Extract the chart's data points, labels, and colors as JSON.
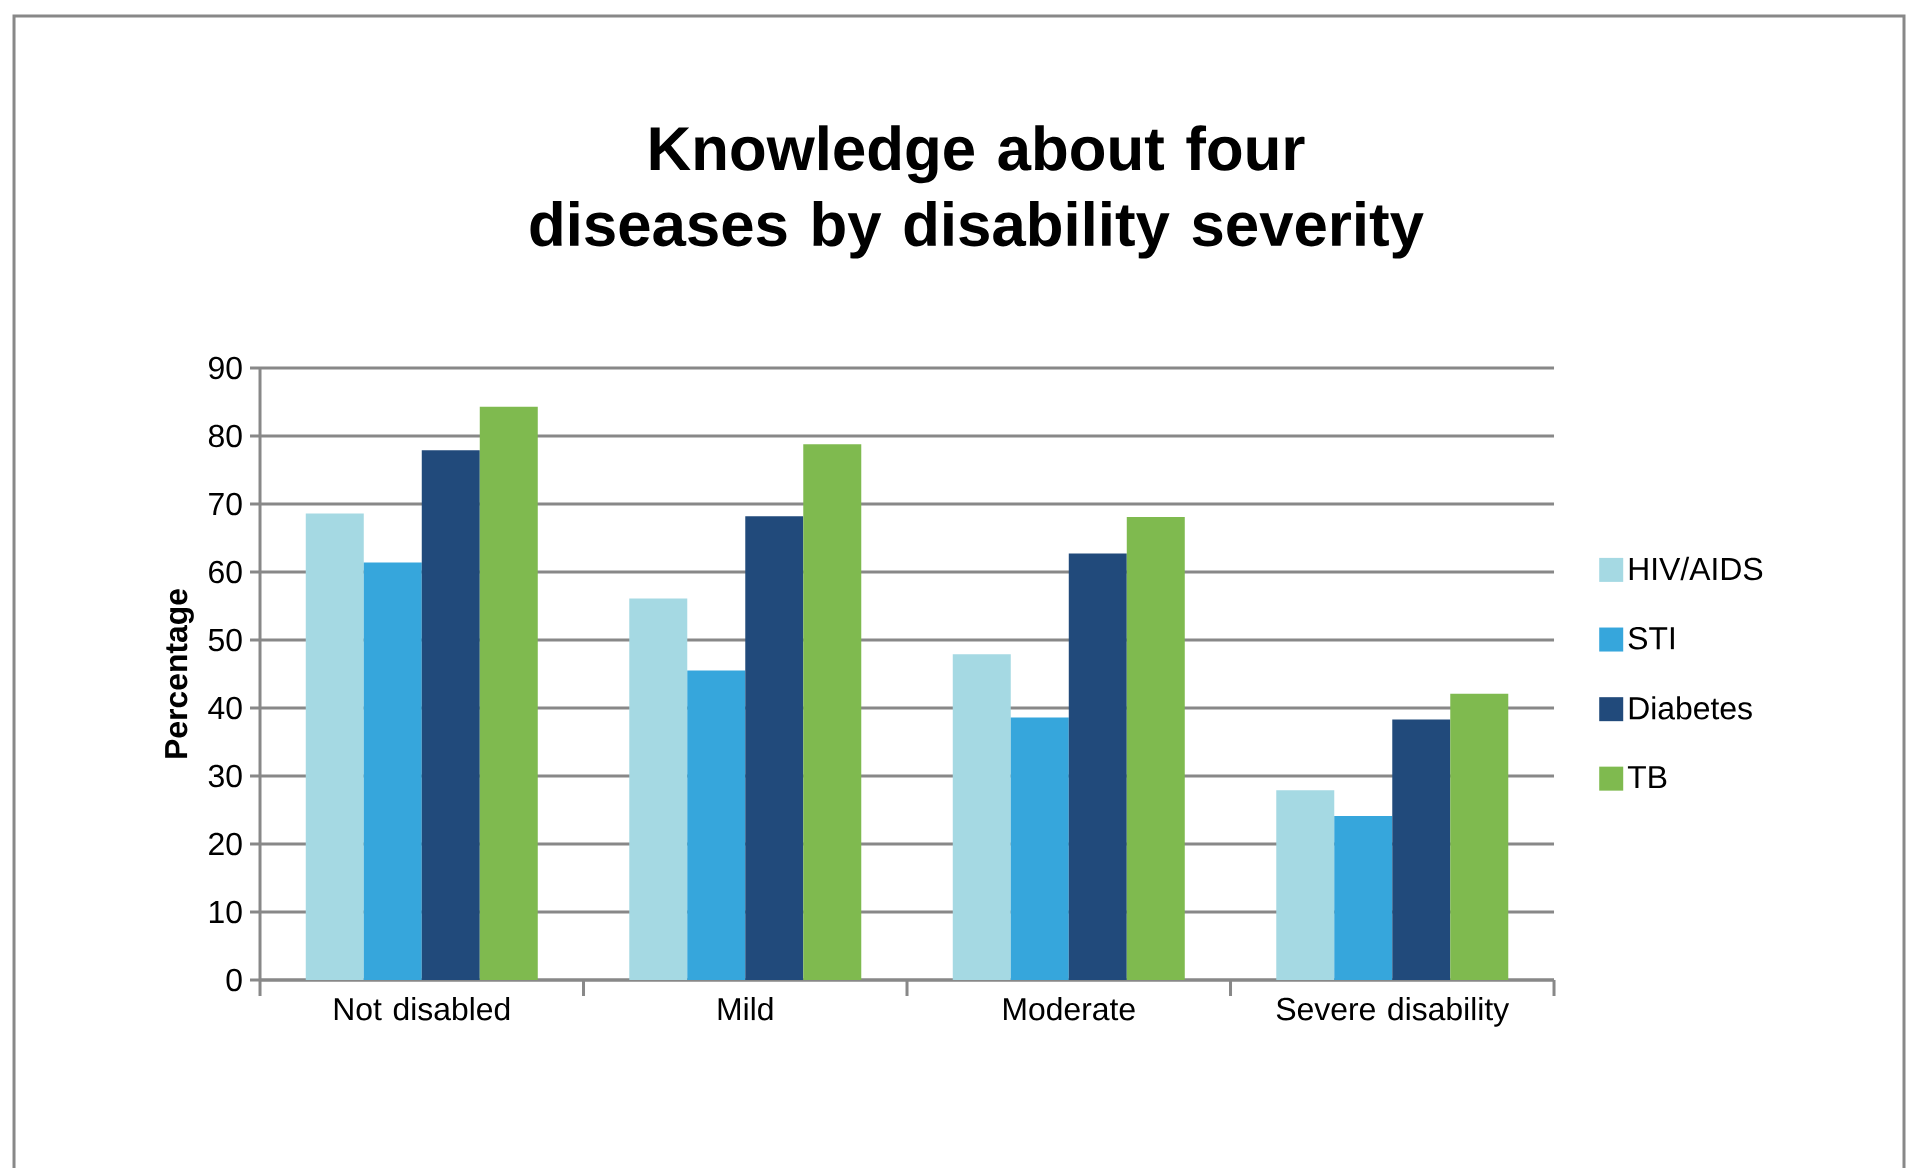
{
  "chart_data": {
    "type": "bar",
    "title": "Knowledge about four diseases by disability severity",
    "ylabel": "Percentage",
    "categories": [
      "Not disabled",
      "Mild",
      "Moderate",
      "Severe disability"
    ],
    "series": [
      {
        "name": "HIV/AIDS",
        "color": "#a5d9e3",
        "values": [
          68.6,
          56.1,
          47.9,
          27.9
        ]
      },
      {
        "name": "STI",
        "color": "#36a6dc",
        "values": [
          61.4,
          45.5,
          38.6,
          24.1
        ]
      },
      {
        "name": "Diabetes",
        "color": "#214a7b",
        "values": [
          77.9,
          68.2,
          62.7,
          38.3
        ]
      },
      {
        "name": "TB",
        "color": "#7fba4f",
        "values": [
          84.3,
          78.8,
          68.1,
          42.1
        ]
      }
    ],
    "ylim": [
      0,
      90
    ],
    "yticks": [
      0,
      10,
      20,
      30,
      40,
      50,
      60,
      70,
      80,
      90
    ],
    "grid": "y",
    "legend": "right"
  }
}
